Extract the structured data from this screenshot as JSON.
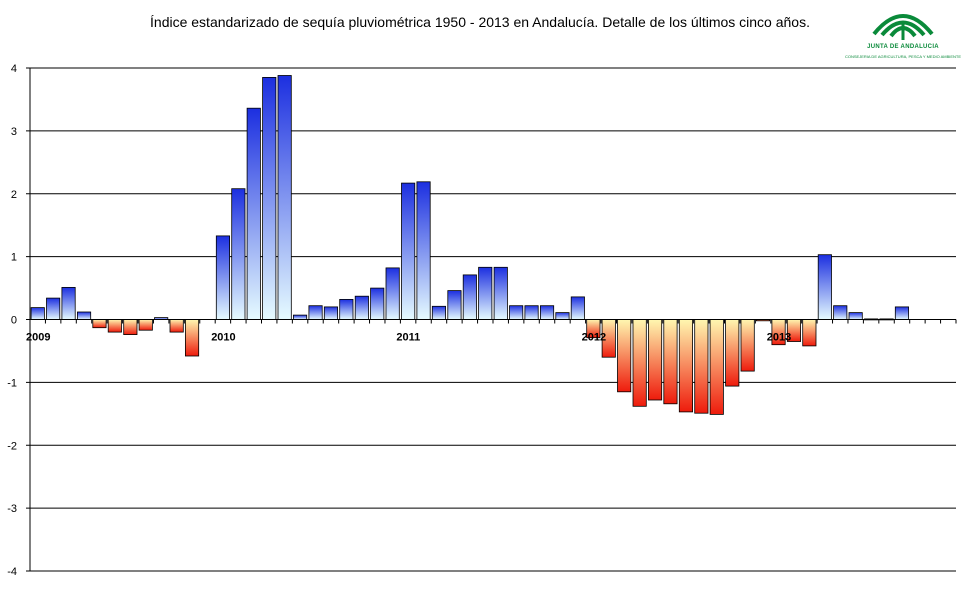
{
  "chart_data": {
    "type": "bar",
    "title": "Índice estandarizado de sequía pluviométrica 1950 - 2013 en Andalucía. Detalle de los últimos cinco años.",
    "xlabel": "",
    "ylabel": "",
    "ylim": [
      -4,
      4
    ],
    "yticks": [
      4,
      3,
      2,
      1,
      0,
      -1,
      -2,
      -3,
      -4
    ],
    "grid": true,
    "year_labels": [
      {
        "label": "2009",
        "index": 0
      },
      {
        "label": "2010",
        "index": 12
      },
      {
        "label": "2011",
        "index": 24
      },
      {
        "label": "2012",
        "index": 36
      },
      {
        "label": "2013",
        "index": 48
      }
    ],
    "categories": [
      "2009-01",
      "2009-02",
      "2009-03",
      "2009-04",
      "2009-05",
      "2009-06",
      "2009-07",
      "2009-08",
      "2009-09",
      "2009-10",
      "2009-11",
      "2009-12",
      "2010-01",
      "2010-02",
      "2010-03",
      "2010-04",
      "2010-05",
      "2010-06",
      "2010-07",
      "2010-08",
      "2010-09",
      "2010-10",
      "2010-11",
      "2010-12",
      "2011-01",
      "2011-02",
      "2011-03",
      "2011-04",
      "2011-05",
      "2011-06",
      "2011-07",
      "2011-08",
      "2011-09",
      "2011-10",
      "2011-11",
      "2011-12",
      "2012-01",
      "2012-02",
      "2012-03",
      "2012-04",
      "2012-05",
      "2012-06",
      "2012-07",
      "2012-08",
      "2012-09",
      "2012-10",
      "2012-11",
      "2012-12",
      "2013-01",
      "2013-02",
      "2013-03",
      "2013-04",
      "2013-05",
      "2013-06",
      "2013-07",
      "2013-08",
      "2013-09",
      "2013-10",
      "2013-11",
      "2013-12"
    ],
    "values": [
      0.19,
      0.34,
      0.51,
      0.12,
      -0.13,
      -0.2,
      -0.24,
      -0.17,
      0.03,
      -0.2,
      -0.58,
      0.0,
      1.33,
      2.08,
      3.36,
      3.85,
      3.88,
      0.07,
      0.22,
      0.2,
      0.32,
      0.37,
      0.5,
      0.82,
      2.17,
      2.19,
      0.21,
      0.46,
      0.71,
      0.83,
      0.83,
      0.22,
      0.22,
      0.22,
      0.11,
      0.36,
      -0.29,
      -0.6,
      -1.15,
      -1.38,
      -1.28,
      -1.34,
      -1.47,
      -1.49,
      -1.51,
      -1.06,
      -0.82,
      -0.02,
      -0.4,
      -0.35,
      -0.42,
      1.03,
      0.22,
      0.11,
      0.01,
      0.01,
      0.2,
      0,
      0,
      0
    ]
  },
  "logo": {
    "name": "JUNTA DE ANDALUCIA",
    "subtitle": "CONSEJERIA DE AGRICULTURA, PESCA Y MEDIO AMBIENTE",
    "color": "#0a8a3a"
  }
}
